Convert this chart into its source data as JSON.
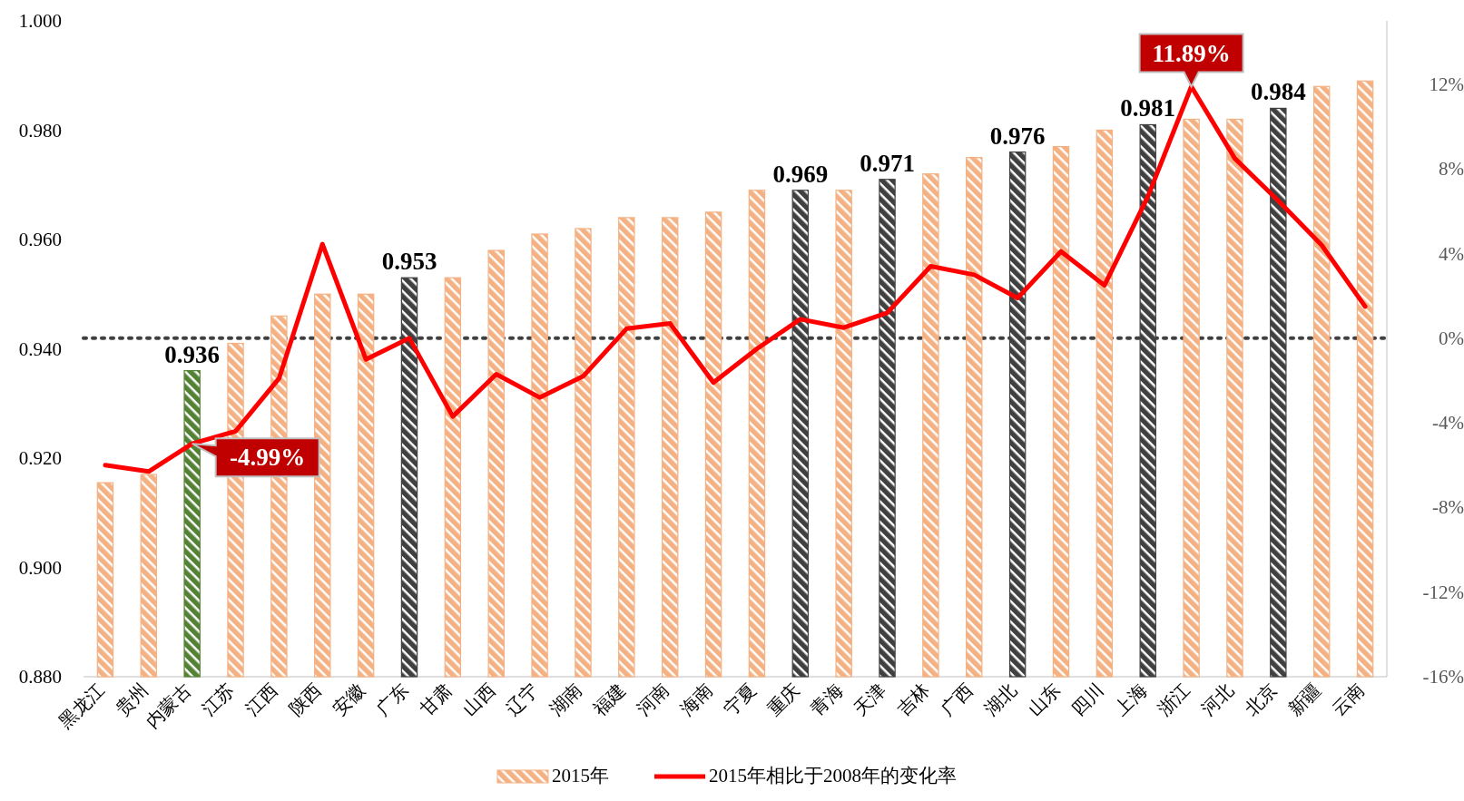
{
  "chart_data": {
    "type": "bar",
    "categories": [
      "黑龙江",
      "贵州",
      "内蒙古",
      "江苏",
      "江西",
      "陕西",
      "安徽",
      "广东",
      "甘肃",
      "山西",
      "辽宁",
      "湖南",
      "福建",
      "河南",
      "海南",
      "宁夏",
      "重庆",
      "青海",
      "天津",
      "吉林",
      "广西",
      "湖北",
      "山东",
      "四川",
      "上海",
      "浙江",
      "河北",
      "北京",
      "新疆",
      "云南"
    ],
    "series": [
      {
        "name": "2015年",
        "color": "#f4b183",
        "colors": [
          "#f4b183",
          "#f4b183",
          "#548235",
          "#f4b183",
          "#f4b183",
          "#f4b183",
          "#f4b183",
          "#404040",
          "#f4b183",
          "#f4b183",
          "#f4b183",
          "#f4b183",
          "#f4b183",
          "#f4b183",
          "#f4b183",
          "#f4b183",
          "#404040",
          "#f4b183",
          "#404040",
          "#f4b183",
          "#f4b183",
          "#404040",
          "#f4b183",
          "#f4b183",
          "#404040",
          "#f4b183",
          "#f4b183",
          "#404040",
          "#f4b183",
          "#f4b183"
        ],
        "values": [
          0.9155,
          0.917,
          0.936,
          0.941,
          0.946,
          0.95,
          0.95,
          0.953,
          0.953,
          0.958,
          0.961,
          0.962,
          0.964,
          0.964,
          0.965,
          0.969,
          0.969,
          0.969,
          0.971,
          0.972,
          0.975,
          0.976,
          0.977,
          0.98,
          0.981,
          0.982,
          0.982,
          0.984,
          0.988,
          0.989
        ],
        "value_labels": [
          null,
          null,
          "0.936",
          null,
          null,
          null,
          null,
          "0.953",
          null,
          null,
          null,
          null,
          null,
          null,
          null,
          null,
          "0.969",
          null,
          "0.971",
          null,
          null,
          "0.976",
          null,
          null,
          "0.981",
          null,
          null,
          "0.984",
          null,
          null
        ]
      },
      {
        "name": "2015年相比于2008年的变化率",
        "type": "line",
        "axis": "y2",
        "color": "#ff0000",
        "values": [
          -6.0,
          -6.3,
          -4.99,
          -4.4,
          -1.9,
          4.45,
          -1.0,
          0.0,
          -3.7,
          -1.7,
          -2.8,
          -1.8,
          0.45,
          0.7,
          -2.1,
          -0.5,
          0.9,
          0.5,
          1.2,
          3.4,
          3.0,
          1.9,
          4.1,
          2.5,
          6.7,
          11.89,
          8.5,
          6.5,
          4.4,
          1.5
        ],
        "value_labels": [
          null,
          null,
          "-4.99%",
          null,
          null,
          null,
          null,
          null,
          null,
          null,
          null,
          null,
          null,
          null,
          null,
          null,
          null,
          null,
          null,
          null,
          null,
          null,
          null,
          null,
          null,
          "11.89%",
          null,
          null,
          null,
          null
        ]
      }
    ],
    "ylim": [
      0.88,
      1.0
    ],
    "yticks": [
      {
        "value": 0.88,
        "label": "0.880"
      },
      {
        "value": 0.9,
        "label": "0.900"
      },
      {
        "value": 0.92,
        "label": "0.920"
      },
      {
        "value": 0.94,
        "label": "0.940"
      },
      {
        "value": 0.96,
        "label": "0.960"
      },
      {
        "value": 0.98,
        "label": "0.980"
      },
      {
        "value": 1.0,
        "label": "1.000"
      }
    ],
    "y2lim": [
      -16,
      15
    ],
    "y2ticks": [
      {
        "value": -16,
        "label": "-16%"
      },
      {
        "value": -12,
        "label": "-12%"
      },
      {
        "value": -8,
        "label": "-8%"
      },
      {
        "value": -4,
        "label": "-4%"
      },
      {
        "value": 0,
        "label": "0%"
      },
      {
        "value": 4,
        "label": "4%"
      },
      {
        "value": 8,
        "label": "8%"
      },
      {
        "value": 12,
        "label": "12%"
      }
    ],
    "ref_lines": [
      {
        "axis": "y2",
        "value": 0,
        "line_style": "dotted",
        "color": "#404040"
      }
    ],
    "legend": "bottom",
    "grid": false
  }
}
